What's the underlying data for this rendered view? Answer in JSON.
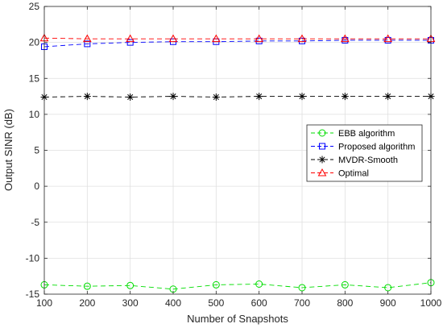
{
  "chart_data": {
    "type": "line",
    "title": "",
    "xlabel": "Number of Snapshots",
    "ylabel": "Output SINR (dB)",
    "xlim": [
      100,
      1000
    ],
    "ylim": [
      -15,
      25
    ],
    "x_ticks": [
      "100",
      "200",
      "300",
      "400",
      "500",
      "600",
      "700",
      "800",
      "900",
      "1000"
    ],
    "y_ticks": [
      "-15",
      "-10",
      "-5",
      "0",
      "5",
      "10",
      "15",
      "20",
      "25"
    ],
    "grid": true,
    "legend_position": "right",
    "x": [
      100,
      200,
      300,
      400,
      500,
      600,
      700,
      800,
      900,
      1000
    ],
    "series": [
      {
        "name": "EBB algorithm",
        "color": "#00dd00",
        "marker": "circle",
        "line": "dashed",
        "values": [
          -13.7,
          -13.9,
          -13.8,
          -14.3,
          -13.7,
          -13.6,
          -14.1,
          -13.7,
          -14.1,
          -13.4
        ]
      },
      {
        "name": "Proposed algorithm",
        "color": "#0000ff",
        "marker": "square",
        "line": "dashed",
        "values": [
          19.4,
          19.8,
          20.0,
          20.1,
          20.1,
          20.2,
          20.2,
          20.3,
          20.3,
          20.3
        ]
      },
      {
        "name": "MVDR-Smooth",
        "color": "#000000",
        "marker": "asterisk",
        "line": "dashed",
        "values": [
          12.4,
          12.5,
          12.4,
          12.5,
          12.4,
          12.5,
          12.5,
          12.5,
          12.5,
          12.5
        ]
      },
      {
        "name": "Optimal",
        "color": "#ff0000",
        "marker": "triangle",
        "line": "dashed",
        "values": [
          20.6,
          20.5,
          20.5,
          20.5,
          20.5,
          20.5,
          20.5,
          20.5,
          20.5,
          20.5
        ]
      }
    ]
  }
}
